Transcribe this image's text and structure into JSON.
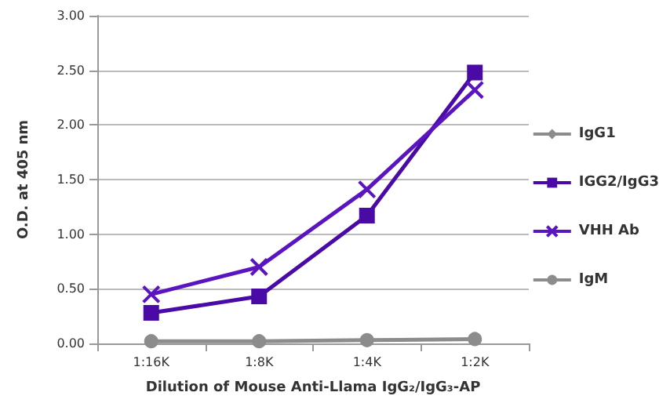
{
  "chart_data": {
    "type": "line",
    "xlabel": "Dilution of Mouse Anti-Llama IgG₂/IgG₃-AP",
    "ylabel": "O.D. at 405 nm",
    "categories": [
      "1:16K",
      "1:8K",
      "1:4K",
      "1:2K"
    ],
    "series": [
      {
        "name": "IgG1",
        "color": "#8c8c8c",
        "marker": "diamond",
        "values": [
          null,
          null,
          null,
          null
        ]
      },
      {
        "name": "IGG2/IgG3",
        "color": "#4a0aa6",
        "marker": "square",
        "values": [
          0.28,
          0.43,
          1.17,
          2.48
        ]
      },
      {
        "name": "VHH Ab",
        "color": "#5a14c0",
        "marker": "cross",
        "values": [
          0.45,
          0.7,
          1.41,
          2.32
        ]
      },
      {
        "name": "IgM",
        "color": "#8c8c8c",
        "marker": "circle",
        "values": [
          0.02,
          0.02,
          0.03,
          0.04
        ]
      }
    ],
    "ylim": [
      0,
      3
    ],
    "yticks": [
      {
        "value": 0,
        "label": "0.00"
      },
      {
        "value": 0.5,
        "label": "0.50"
      },
      {
        "value": 1,
        "label": "1.00"
      },
      {
        "value": 1.5,
        "label": "1.50"
      },
      {
        "value": 2,
        "label": "2.00"
      },
      {
        "value": 2.5,
        "label": "2.50"
      },
      {
        "value": 3,
        "label": "3.00"
      }
    ],
    "grid": "y",
    "legend": "right"
  }
}
